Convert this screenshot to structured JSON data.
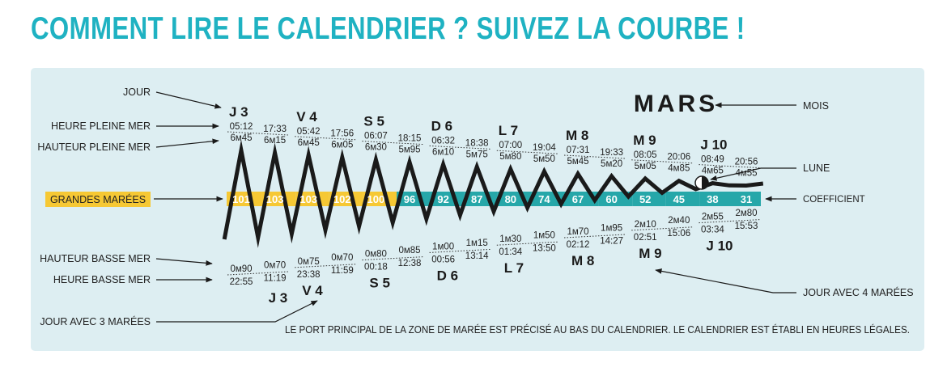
{
  "title": "COMMENT LIRE LE CALENDRIER ? SUIVEZ LA COURBE !",
  "month": "MARS",
  "legend": {
    "jour": "JOUR",
    "heure_pleine_mer": "HEURE PLEINE MER",
    "hauteur_pleine_mer": "HAUTEUR PLEINE MER",
    "grandes_marees": "GRANDES MARÉES",
    "hauteur_basse_mer": "HAUTEUR BASSE MER",
    "heure_basse_mer": "HEURE BASSE MER",
    "jour_3_marees": "JOUR AVEC 3 MARÉES",
    "mois": "MOIS",
    "lune": "LUNE",
    "coefficient": "COEFFICIENT",
    "jour_4_marees": "JOUR AVEC 4 MARÉES"
  },
  "footnote": "LE PORT PRINCIPAL DE LA ZONE DE MARÉE EST PRÉCISÉ AU BAS DU CALENDRIER. LE CALENDRIER EST ÉTABLI EN HEURES LÉGALES.",
  "colors": {
    "title": "#1fb2c2",
    "gold": "#f6c834",
    "teal": "#26a7a9",
    "panel": "#ddeef2",
    "line": "#1a1a1a"
  },
  "grandes_marees_threshold": 100,
  "coefficients": [
    101,
    103,
    103,
    102,
    100,
    96,
    92,
    87,
    80,
    74,
    67,
    60,
    52,
    45,
    38,
    31
  ],
  "high_days": [
    "J 3",
    "V 4",
    "S 5",
    "D 6",
    "L 7",
    "M 8",
    "M 9",
    "J 10"
  ],
  "highs": [
    {
      "time": "05:12",
      "height": "6м45"
    },
    {
      "time": "17:33",
      "height": "6м15"
    },
    {
      "time": "05:42",
      "height": "6м45"
    },
    {
      "time": "17:56",
      "height": "6м05"
    },
    {
      "time": "06:07",
      "height": "6м30"
    },
    {
      "time": "18:15",
      "height": "5м95"
    },
    {
      "time": "06:32",
      "height": "6м10"
    },
    {
      "time": "18:38",
      "height": "5м75"
    },
    {
      "time": "07:00",
      "height": "5м80"
    },
    {
      "time": "19:04",
      "height": "5м50"
    },
    {
      "time": "07:31",
      "height": "5м45"
    },
    {
      "time": "19:33",
      "height": "5м20"
    },
    {
      "time": "08:05",
      "height": "5м05"
    },
    {
      "time": "20:06",
      "height": "4м85"
    },
    {
      "time": "08:49",
      "height": "4м65"
    },
    {
      "time": "20:56",
      "height": "4м55"
    }
  ],
  "lows": [
    {
      "height": "0м90",
      "time": "22:55"
    },
    {
      "height": "0м70",
      "time": "11:19"
    },
    {
      "height": "0м75",
      "time": "23:38"
    },
    {
      "height": "0м70",
      "time": "11:59"
    },
    {
      "height": "0м80",
      "time": "00:18"
    },
    {
      "height": "0м85",
      "time": "12:38"
    },
    {
      "height": "1м00",
      "time": "00:56"
    },
    {
      "height": "1м15",
      "time": "13:14"
    },
    {
      "height": "1м30",
      "time": "01:34"
    },
    {
      "height": "1м50",
      "time": "13:50"
    },
    {
      "height": "1м70",
      "time": "02:12"
    },
    {
      "height": "1м95",
      "time": "14:27"
    },
    {
      "height": "2м10",
      "time": "02:51"
    },
    {
      "height": "2м40",
      "time": "15:06"
    },
    {
      "height": "2м55",
      "time": "03:34"
    },
    {
      "height": "2м80",
      "time": "15:53"
    }
  ],
  "low_days": [
    "J 3",
    "V 4",
    "S 5",
    "D 6",
    "L 7",
    "M 8",
    "M 9",
    "J 10"
  ]
}
